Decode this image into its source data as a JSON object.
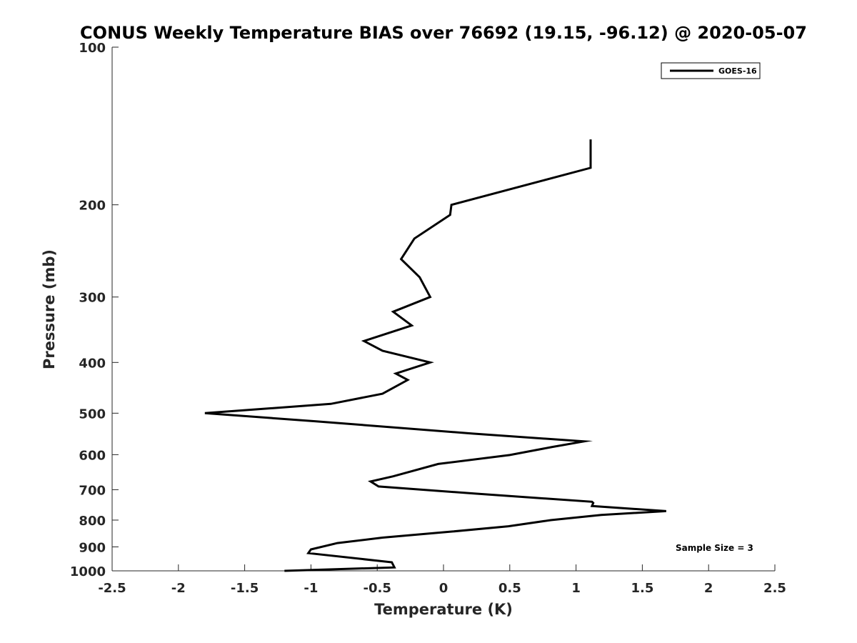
{
  "chart_data": {
    "type": "line",
    "title": "CONUS Weekly Temperature BIAS over 76692 (19.15, -96.12) @ 2020-05-07",
    "xlabel": "Temperature (K)",
    "ylabel": "Pressure (mb)",
    "xlim": [
      -2.5,
      2.5
    ],
    "ylim": [
      100,
      1000
    ],
    "y_scale": "log",
    "y_reversed": true,
    "x_ticks": [
      "-2.5",
      "-2",
      "-1.5",
      "-1",
      "-0.5",
      "0",
      "0.5",
      "1",
      "1.5",
      "2",
      "2.5"
    ],
    "y_ticks": [
      "100",
      "200",
      "300",
      "400",
      "500",
      "600",
      "700",
      "800",
      "900",
      "1000"
    ],
    "grid": false,
    "legend": {
      "position": "top-right",
      "entries": [
        "GOES-16"
      ]
    },
    "annotation": "Sample Size = 3",
    "series": [
      {
        "name": "GOES-16",
        "color": "#000000",
        "points": [
          [
            1.11,
            150
          ],
          [
            1.11,
            170
          ],
          [
            0.06,
            200
          ],
          [
            0.05,
            209
          ],
          [
            -0.22,
            232
          ],
          [
            -0.32,
            254
          ],
          [
            -0.18,
            275
          ],
          [
            -0.1,
            300
          ],
          [
            -0.38,
            320
          ],
          [
            -0.24,
            340
          ],
          [
            -0.6,
            364
          ],
          [
            -0.46,
            380
          ],
          [
            -0.1,
            400
          ],
          [
            -0.36,
            420
          ],
          [
            -0.27,
            432
          ],
          [
            -0.46,
            459
          ],
          [
            -0.85,
            480
          ],
          [
            -1.8,
            500
          ],
          [
            -0.97,
            518
          ],
          [
            0.22,
            547
          ],
          [
            1.06,
            566
          ],
          [
            0.82,
            580
          ],
          [
            0.5,
            601
          ],
          [
            -0.04,
            625
          ],
          [
            -0.38,
            660
          ],
          [
            -0.55,
            675
          ],
          [
            -0.49,
            690
          ],
          [
            0.24,
            712
          ],
          [
            1.12,
            738
          ],
          [
            1.13,
            742
          ],
          [
            1.12,
            752
          ],
          [
            1.68,
            769
          ],
          [
            1.19,
            782
          ],
          [
            0.81,
            800
          ],
          [
            0.49,
            822
          ],
          [
            0.07,
            841
          ],
          [
            -0.46,
            864
          ],
          [
            -0.8,
            885
          ],
          [
            -1.0,
            910
          ],
          [
            -1.02,
            925
          ],
          [
            -0.39,
            963
          ],
          [
            -0.37,
            985
          ],
          [
            -1.2,
            1000
          ]
        ]
      }
    ]
  }
}
